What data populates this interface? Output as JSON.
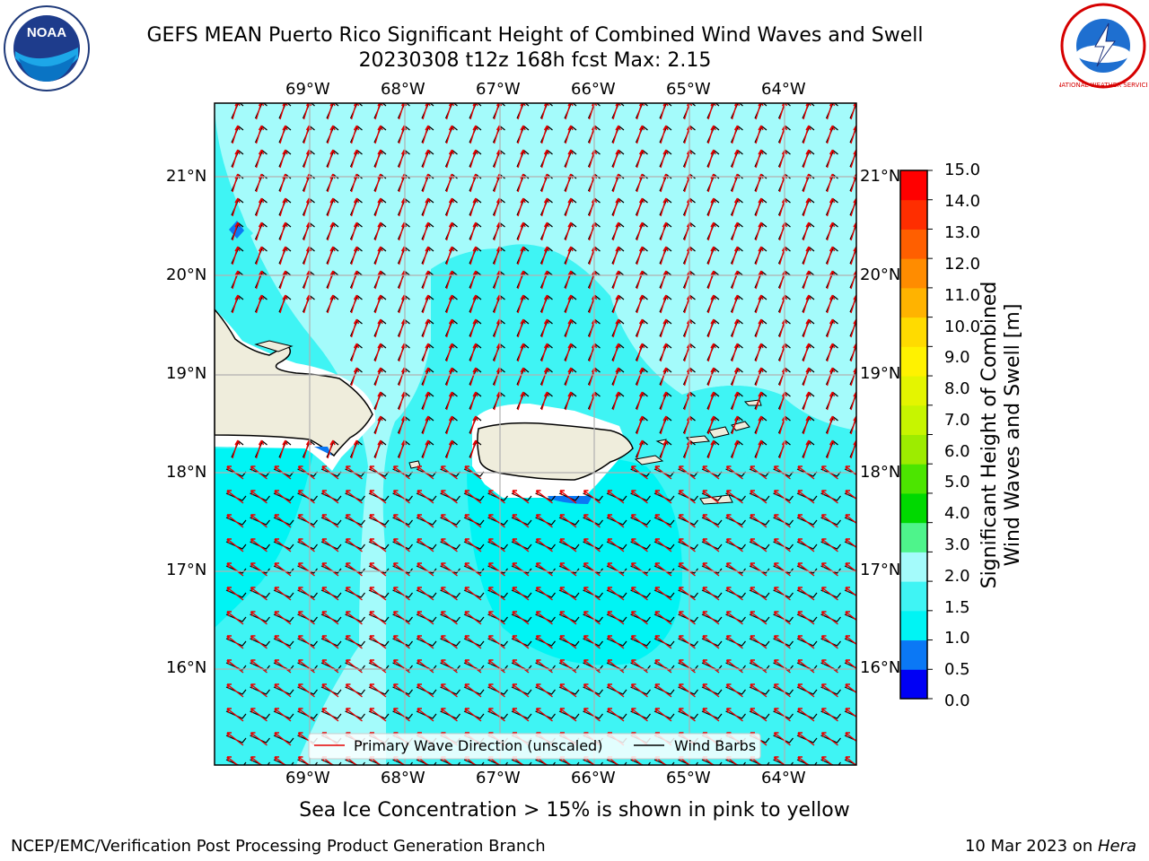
{
  "header": {
    "title_line1": "GEFS MEAN Puerto Rico Significant Height of Combined Wind Waves and Swell",
    "title_line2": "20230308 t12z 168h fcst   Max: 2.15"
  },
  "logos": {
    "left": {
      "label": "NOAA",
      "ring_text": "NATIONAL OCEANIC AND ATMOSPHERIC ADMINISTRATION · U.S. DEPARTMENT OF COMMERCE"
    },
    "right": {
      "label": "NATIONAL WEATHER SERVICE"
    }
  },
  "map": {
    "lon_labels": [
      "69°W",
      "68°W",
      "67°W",
      "66°W",
      "65°W",
      "64°W"
    ],
    "lat_labels": [
      "21°N",
      "20°N",
      "19°N",
      "18°N",
      "17°N",
      "16°N"
    ],
    "legend": {
      "wave_label": "Primary Wave Direction (unscaled)",
      "wind_label": "Wind Barbs"
    },
    "colors": {
      "land": "#efeddc",
      "coast": "#000000",
      "wave_arrow": "#e60000",
      "grid": "#b0b0b0"
    }
  },
  "colorbar": {
    "label_line1": "Significant Height of Combined",
    "label_line2": "Wind Waves and Swell [m]",
    "ticks": [
      "15.0",
      "14.0",
      "13.0",
      "12.0",
      "11.0",
      "10.0",
      "9.0",
      "8.0",
      "7.0",
      "6.0",
      "5.0",
      "4.0",
      "3.0",
      "2.0",
      "1.5",
      "1.0",
      "0.5",
      "0.0"
    ],
    "bands": [
      "#0000f5",
      "#0b78f5",
      "#00f4f4",
      "#3ff4f4",
      "#a4fbfb",
      "#4ef48b",
      "#00d900",
      "#4ce500",
      "#9dec00",
      "#c7f500",
      "#e4f500",
      "#fff200",
      "#ffdb00",
      "#ffb300",
      "#ff8c00",
      "#ff5f00",
      "#ff2e00",
      "#ff0000"
    ]
  },
  "footer": {
    "sea_ice_note": "Sea Ice Concentration > 15% is shown in pink to yellow",
    "branch": "NCEP/EMC/Verification Post Processing Product Generation Branch",
    "date": "10 Mar 2023 on ",
    "machine": "Hera"
  }
}
